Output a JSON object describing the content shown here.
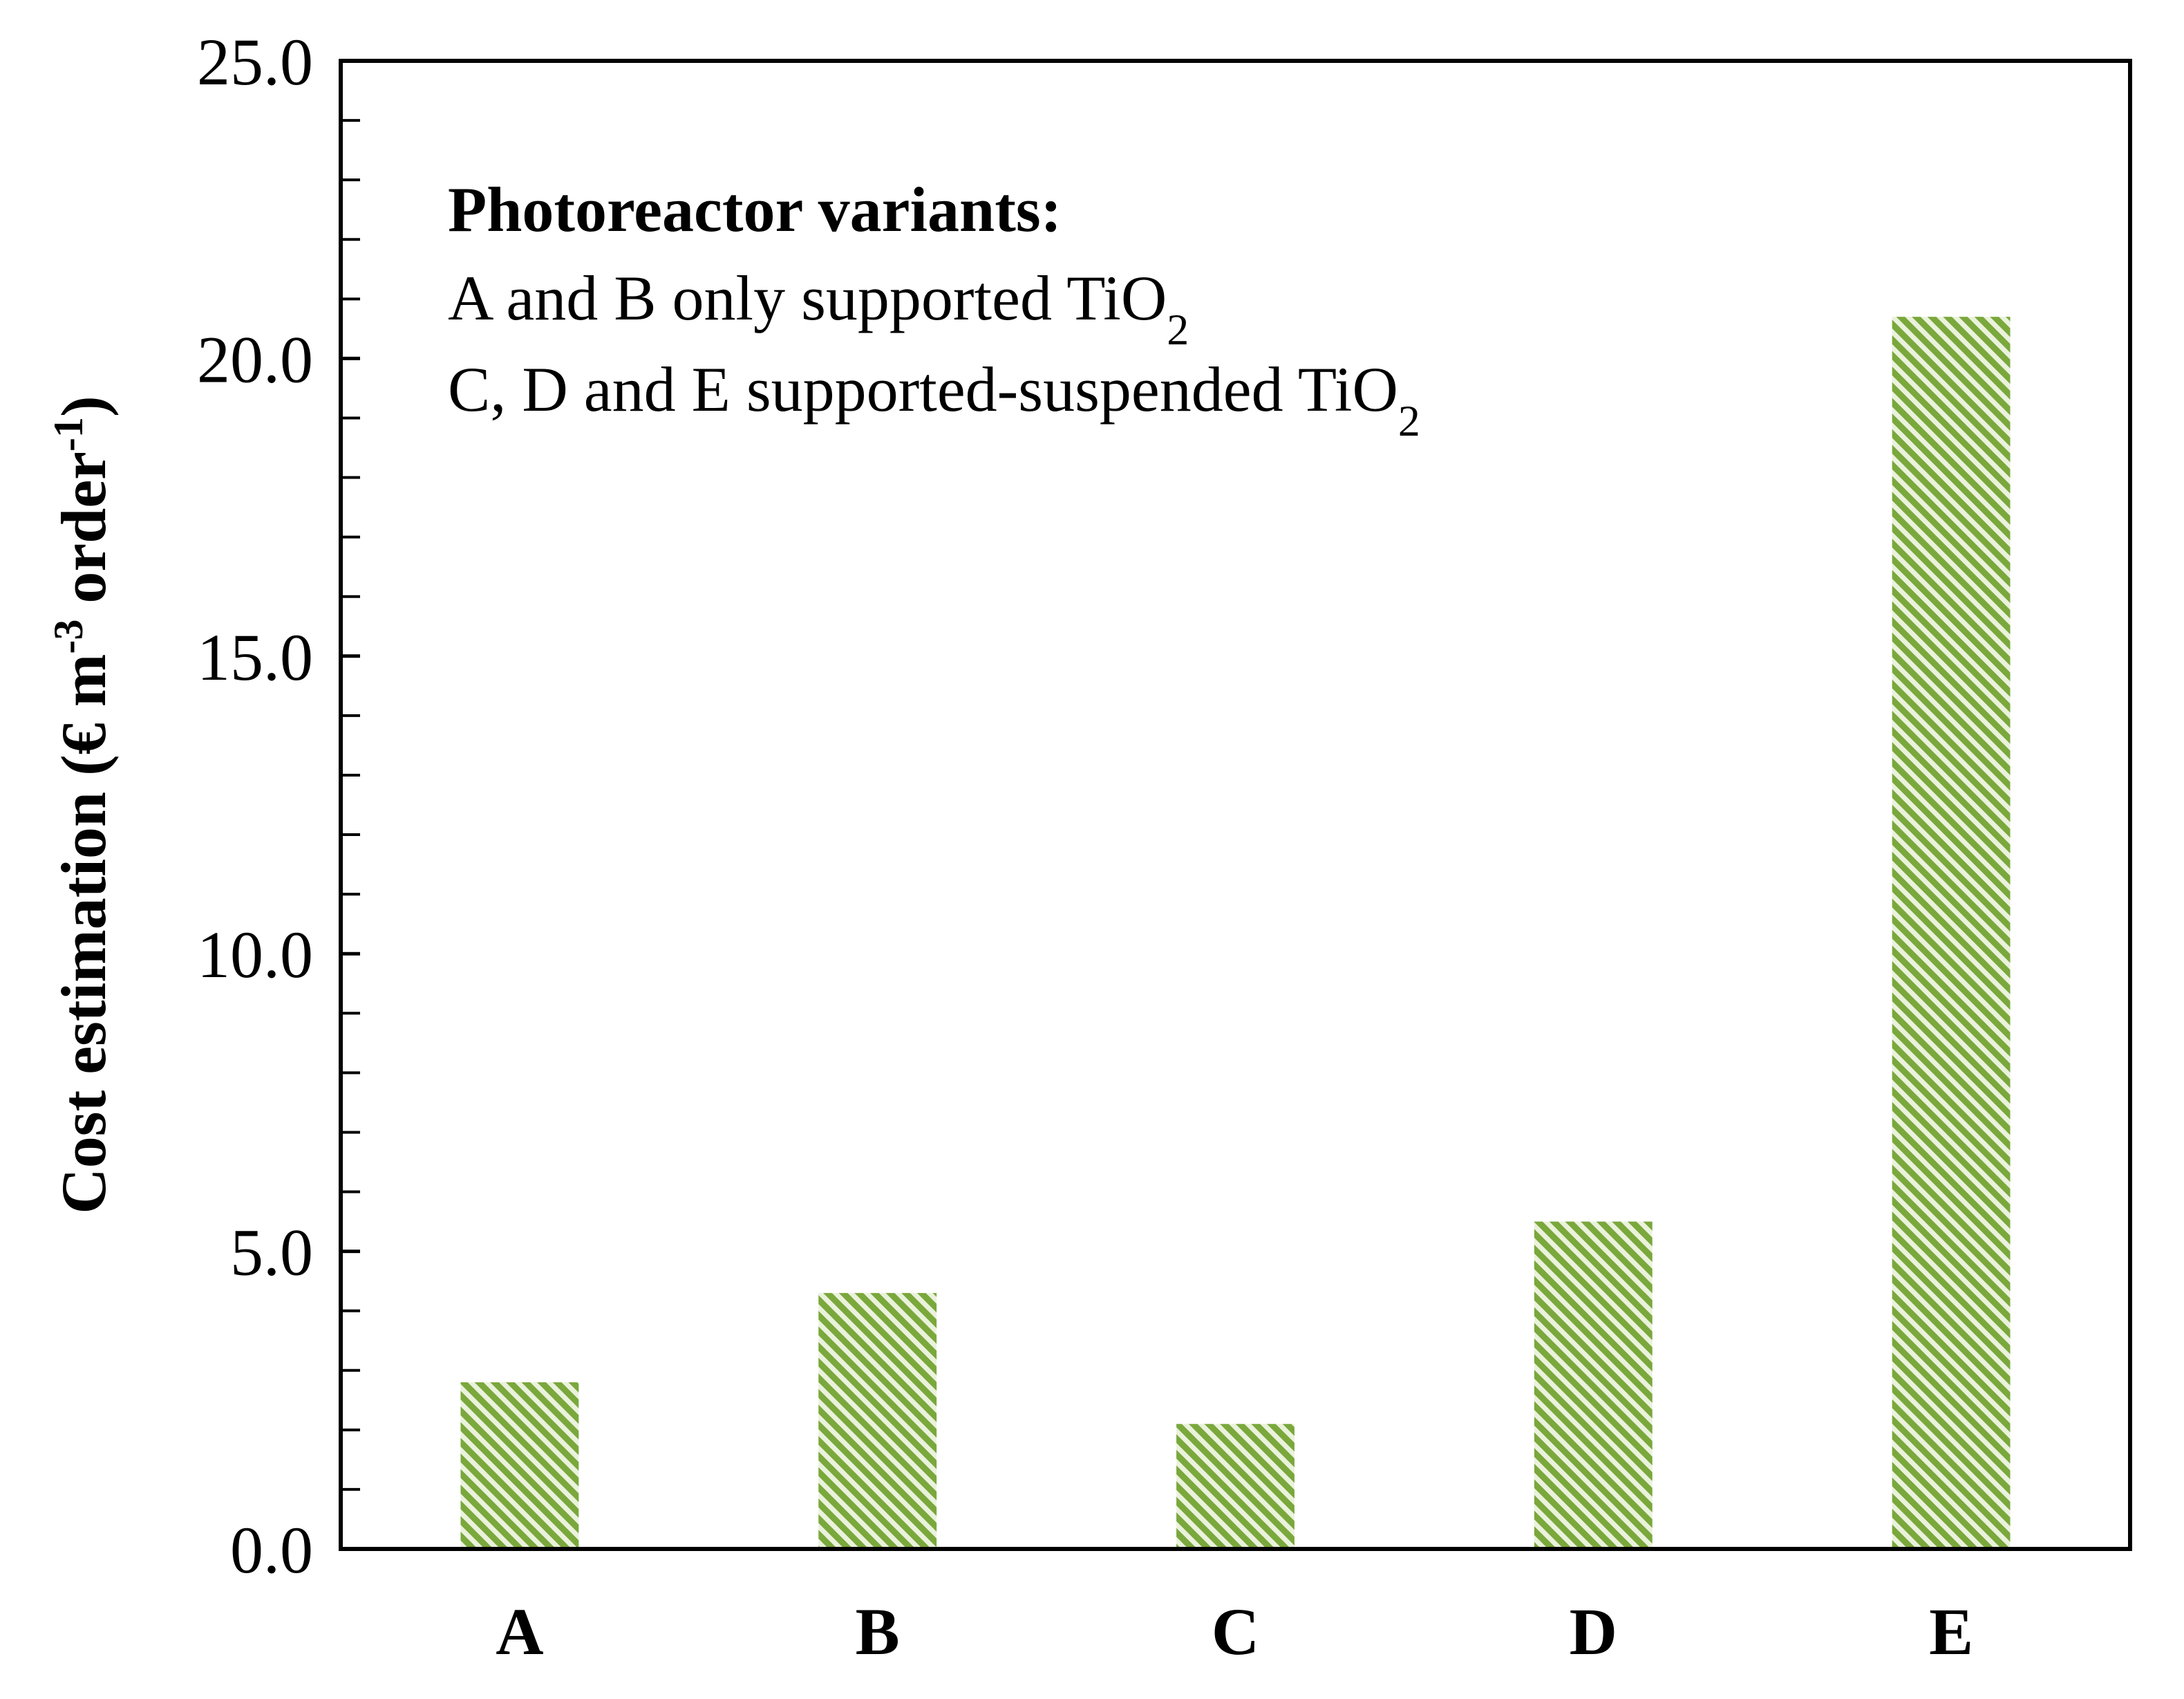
{
  "colors": {
    "bar_stripe": "#7aa83c",
    "bar_light": "#eaf2dc",
    "axis": "#000000"
  },
  "chart_data": {
    "type": "bar",
    "categories": [
      "A",
      "B",
      "C",
      "D",
      "E"
    ],
    "values": [
      2.8,
      4.3,
      2.1,
      5.5,
      20.7
    ],
    "ylabel": {
      "main": "Cost estimation (€ m",
      "sup1": "-3",
      "mid": " order",
      "sup2": "-1",
      "end": ")"
    },
    "ylim": [
      0,
      25
    ],
    "ytick_values": [
      0,
      5,
      10,
      15,
      20,
      25
    ],
    "ytick_labels": [
      "0.0",
      "5.0",
      "10.0",
      "15.0",
      "20.0",
      "25.0"
    ],
    "minor_ticks_per_major": 5,
    "grid": false,
    "annotation": {
      "title": "Photoreactor variants:",
      "line1": {
        "text": "A and B only supported TiO",
        "sub": "2"
      },
      "line2": {
        "text": "C, D and E supported-suspended  TiO",
        "sub": "2"
      }
    }
  }
}
